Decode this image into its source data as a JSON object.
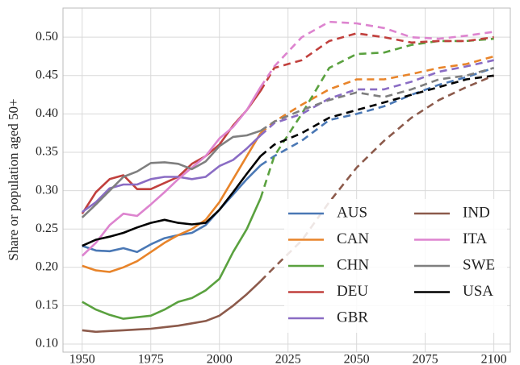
{
  "chart_data": {
    "type": "line",
    "ylabel": "Share or population aged 50+",
    "x": [
      1950,
      1955,
      1960,
      1965,
      1970,
      1975,
      1980,
      1985,
      1990,
      1995,
      2000,
      2005,
      2010,
      2015,
      2020,
      2030,
      2040,
      2050,
      2060,
      2070,
      2080,
      2090,
      2100
    ],
    "dashed_after": 2015,
    "xlim": [
      1943,
      2106
    ],
    "xticks": [
      1950,
      1975,
      2000,
      2025,
      2050,
      2075,
      2100
    ],
    "ylim": [
      0.0895,
      0.538
    ],
    "yticks": [
      {
        "value": 0.1,
        "label": "0.10"
      },
      {
        "value": 0.15,
        "label": "0.15"
      },
      {
        "value": 0.2,
        "label": "0.20"
      },
      {
        "value": 0.25,
        "label": "0.25"
      },
      {
        "value": 0.3,
        "label": "0.30"
      },
      {
        "value": 0.35,
        "label": "0.35"
      },
      {
        "value": 0.4,
        "label": "0.40"
      },
      {
        "value": 0.45,
        "label": "0.45"
      },
      {
        "value": 0.5,
        "label": "0.50"
      }
    ],
    "grid": true,
    "legend": "lower right",
    "series": [
      {
        "name": "AUS",
        "color": "#4a78b5",
        "values": [
          0.228,
          0.222,
          0.221,
          0.225,
          0.22,
          0.23,
          0.238,
          0.242,
          0.245,
          0.255,
          0.275,
          0.295,
          0.315,
          0.333,
          0.345,
          0.365,
          0.392,
          0.4,
          0.41,
          0.425,
          0.438,
          0.448,
          0.46
        ]
      },
      {
        "name": "CAN",
        "color": "#e8842a",
        "values": [
          0.202,
          0.196,
          0.194,
          0.2,
          0.208,
          0.22,
          0.232,
          0.242,
          0.25,
          0.262,
          0.285,
          0.315,
          0.345,
          0.375,
          0.39,
          0.412,
          0.432,
          0.445,
          0.445,
          0.452,
          0.46,
          0.465,
          0.475
        ]
      },
      {
        "name": "CHN",
        "color": "#5aa13f",
        "values": [
          0.155,
          0.145,
          0.138,
          0.133,
          0.135,
          0.137,
          0.145,
          0.155,
          0.16,
          0.17,
          0.185,
          0.22,
          0.25,
          0.29,
          0.345,
          0.4,
          0.46,
          0.478,
          0.48,
          0.49,
          0.495,
          0.495,
          0.498
        ]
      },
      {
        "name": "DEU",
        "color": "#c1403d",
        "values": [
          0.27,
          0.298,
          0.315,
          0.32,
          0.302,
          0.302,
          0.31,
          0.318,
          0.335,
          0.345,
          0.36,
          0.385,
          0.405,
          0.43,
          0.46,
          0.47,
          0.495,
          0.505,
          0.5,
          0.493,
          0.495,
          0.495,
          0.5
        ]
      },
      {
        "name": "GBR",
        "color": "#8a6cc4",
        "values": [
          0.272,
          0.285,
          0.303,
          0.308,
          0.308,
          0.315,
          0.318,
          0.318,
          0.315,
          0.318,
          0.332,
          0.34,
          0.355,
          0.372,
          0.388,
          0.4,
          0.42,
          0.432,
          0.432,
          0.442,
          0.455,
          0.462,
          0.47
        ]
      },
      {
        "name": "IND",
        "color": "#8c5a4b",
        "values": [
          0.118,
          0.116,
          0.117,
          0.118,
          0.119,
          0.12,
          0.122,
          0.124,
          0.127,
          0.13,
          0.137,
          0.15,
          0.165,
          0.182,
          0.2,
          0.235,
          0.285,
          0.33,
          0.365,
          0.395,
          0.418,
          0.435,
          0.45
        ]
      },
      {
        "name": "ITA",
        "color": "#dd84cf",
        "values": [
          0.215,
          0.232,
          0.255,
          0.27,
          0.267,
          0.282,
          0.298,
          0.315,
          0.33,
          0.345,
          0.368,
          0.383,
          0.405,
          0.435,
          0.462,
          0.5,
          0.52,
          0.518,
          0.512,
          0.5,
          0.498,
          0.502,
          0.507
        ]
      },
      {
        "name": "SWE",
        "color": "#7f7f7f",
        "values": [
          0.265,
          0.282,
          0.3,
          0.318,
          0.325,
          0.336,
          0.337,
          0.335,
          0.328,
          0.338,
          0.358,
          0.37,
          0.372,
          0.378,
          0.39,
          0.405,
          0.418,
          0.428,
          0.422,
          0.432,
          0.445,
          0.45,
          0.46
        ]
      },
      {
        "name": "USA",
        "color": "#000000",
        "values": [
          0.228,
          0.236,
          0.24,
          0.245,
          0.252,
          0.258,
          0.262,
          0.258,
          0.256,
          0.258,
          0.275,
          0.298,
          0.322,
          0.345,
          0.36,
          0.375,
          0.395,
          0.405,
          0.415,
          0.425,
          0.435,
          0.445,
          0.45
        ]
      }
    ]
  }
}
